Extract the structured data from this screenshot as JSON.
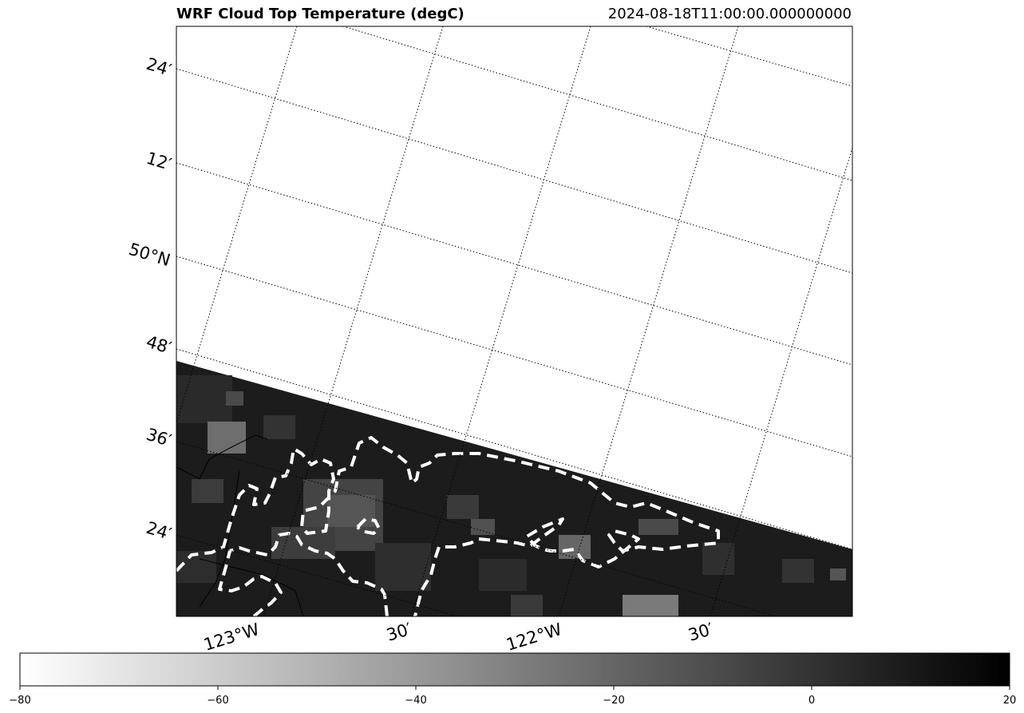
{
  "header": {
    "title_left": "WRF Cloud Top Temperature (degC)",
    "title_right": "2024-08-18T11:00:00.000000000"
  },
  "map": {
    "lat_labels": [
      "24′",
      "12′",
      "50°N",
      "48′",
      "36′",
      "24′"
    ],
    "lon_labels": [
      "123°W",
      "30′",
      "122°W",
      "30′"
    ],
    "data_region_color": "#1a1a1a",
    "contour_color": "#ffffff",
    "gridline_style": "dotted"
  },
  "chart_data": {
    "type": "heatmap",
    "title": "WRF Cloud Top Temperature (degC)",
    "subtitle": "2024-08-18T11:00:00.000000000",
    "colormap": "gray_r",
    "colorbar": {
      "orientation": "horizontal",
      "range": [
        -80,
        20
      ],
      "ticks": [
        -80,
        -60,
        -40,
        -20,
        0,
        20
      ],
      "tick_labels": [
        "−80",
        "−60",
        "−40",
        "−20",
        "0",
        "20"
      ]
    },
    "latitude_ticks": [
      "24′",
      "12′",
      "50°N",
      "48′",
      "36′",
      "24′"
    ],
    "longitude_ticks": [
      "123°W",
      "30′",
      "122°W",
      "30′"
    ],
    "grid": true,
    "notes_visible": "valid data only in southern portion; dashed white contour outlines"
  }
}
